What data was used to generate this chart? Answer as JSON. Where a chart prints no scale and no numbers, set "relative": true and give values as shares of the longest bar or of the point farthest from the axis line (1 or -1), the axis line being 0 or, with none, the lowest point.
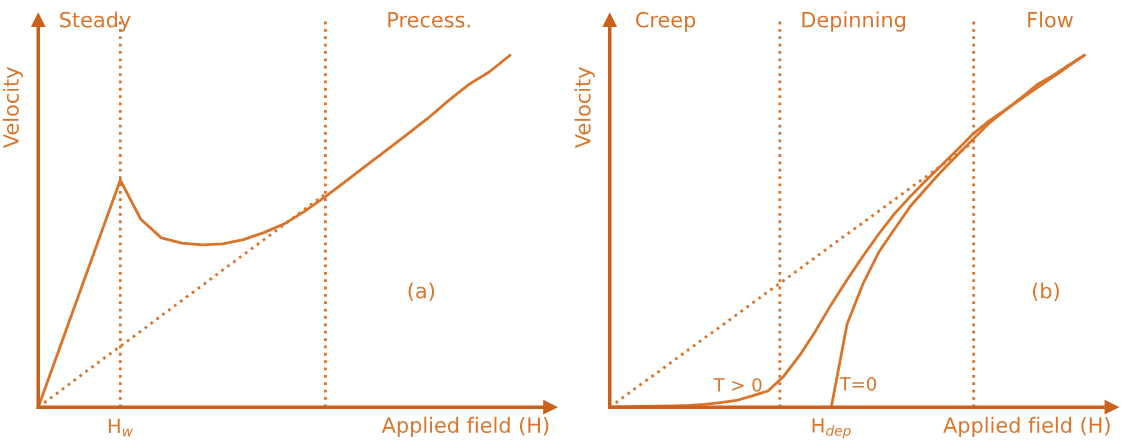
{
  "chart_data": [
    {
      "type": "line",
      "relative": true,
      "xlabel": "Applied field (H)",
      "ylabel": "Velocity",
      "legend": false,
      "marker": "none",
      "categories": [
        null,
        null,
        null,
        null,
        null,
        null,
        null,
        null,
        null,
        null,
        null,
        null,
        null,
        null,
        null,
        null,
        null,
        null,
        null,
        null,
        null,
        null,
        null,
        null
      ],
      "series": [
        {
          "color": "#d9742b",
          "line_style": "solid",
          "values": [
            0,
            0.161,
            0.323,
            0.484,
            0.645,
            0.534,
            0.481,
            0.466,
            0.461,
            0.464,
            0.476,
            0.496,
            0.521,
            0.557,
            0.598,
            0.642,
            0.687,
            0.731,
            0.776,
            0.821,
            0.871,
            0.917,
            0.953,
            1.0
          ]
        },
        {
          "color": "#d9742b",
          "line_style": "dotted",
          "values": [
            0,
            0.043,
            0.087,
            0.13,
            0.173,
            0.216,
            0.26,
            0.303,
            0.346,
            0.39,
            0.433,
            0.476,
            0.519,
            0.563,
            0.606,
            null,
            null,
            null,
            null,
            null,
            null,
            null,
            null,
            null
          ]
        }
      ],
      "annotations": [
        "Steady",
        "Precess.",
        "H$_{w}$",
        "(a)"
      ]
    },
    {
      "type": "line",
      "relative": true,
      "xlabel": "Applied field (H)",
      "ylabel": "Velocity",
      "legend": false,
      "marker": "none",
      "categories": [
        null,
        null,
        null,
        null,
        null,
        null,
        null,
        null,
        null,
        null,
        null,
        null,
        null,
        null,
        null,
        null,
        null,
        null,
        null,
        null,
        null,
        null,
        null,
        null,
        null,
        null,
        null,
        null,
        null,
        null,
        null
      ],
      "series": [
        {
          "name": "T > 0",
          "color": "#d9742b",
          "line_style": "solid",
          "values": [
            0,
            0.001,
            0.002,
            0.003,
            0.004,
            0.005,
            0.008,
            0.013,
            0.019,
            0.032,
            0.046,
            0.088,
            0.147,
            0.216,
            0.292,
            0.362,
            0.429,
            0.492,
            0.55,
            0.599,
            0.645,
            0.689,
            0.733,
            0.778,
            0.814,
            0.845,
            0.876,
            0.907,
            0.938,
            0.969,
            1.0
          ]
        },
        {
          "name": "T=0",
          "color": "#d9742b",
          "line_style": "solid",
          "values": [
            null,
            null,
            null,
            null,
            null,
            null,
            null,
            null,
            null,
            null,
            null,
            null,
            null,
            null,
            0,
            0.236,
            0.35,
            0.44,
            0.506,
            0.571,
            0.622,
            0.672,
            0.718,
            0.763,
            0.808,
            0.844,
            0.879,
            0.916,
            0.942,
            0.972,
            1.0
          ]
        },
        {
          "color": "#d9742b",
          "line_style": "dotted",
          "values": [
            0,
            0.033,
            0.066,
            0.098,
            0.131,
            0.164,
            0.197,
            0.229,
            0.262,
            0.295,
            0.328,
            0.36,
            0.393,
            0.426,
            0.459,
            0.492,
            0.524,
            0.557,
            0.59,
            0.623,
            0.655,
            0.688,
            0.721,
            0.754,
            null,
            null,
            null,
            null,
            null,
            null,
            null
          ]
        }
      ],
      "annotations": [
        "Creep",
        "Depinning",
        "Flow",
        "H$_{dep}$",
        "(b)"
      ]
    }
  ]
}
